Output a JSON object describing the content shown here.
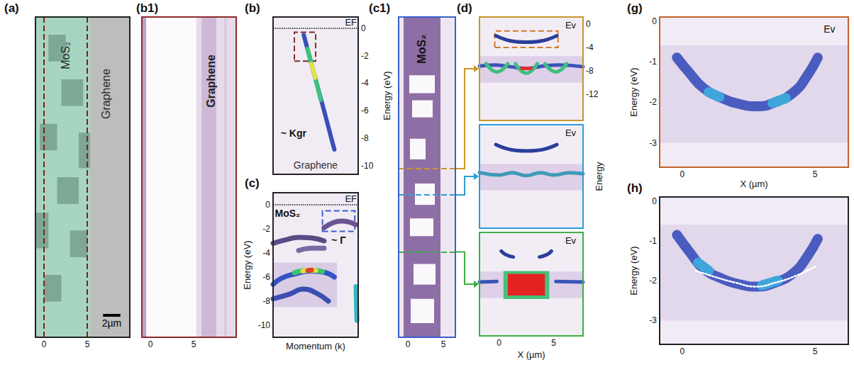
{
  "chart_data": [
    {
      "type": "image",
      "title": "(a)",
      "xlim": [
        -1,
        9.9
      ],
      "xticks": [
        0,
        5
      ],
      "ylim": [
        0,
        36
      ],
      "yticks": [],
      "tick_labels": "x",
      "areas": [
        {
          "x": [
            -1,
            9.9
          ],
          "y": [
            0,
            36
          ],
          "color": "#bdbdbd"
        },
        {
          "x": [
            -1,
            5.3
          ],
          "y": [
            0,
            36
          ],
          "color": "#a6d6c2"
        },
        {
          "x": [
            0.5,
            2.5
          ],
          "y": [
            31,
            34
          ],
          "color": "#7ea896"
        },
        {
          "x": [
            2.0,
            4.5
          ],
          "y": [
            26,
            29
          ],
          "color": "#7ea896"
        },
        {
          "x": [
            -0.5,
            1.5
          ],
          "y": [
            21,
            24
          ],
          "color": "#7ea896"
        },
        {
          "x": [
            1.5,
            4.0
          ],
          "y": [
            15,
            18
          ],
          "color": "#7ea896"
        },
        {
          "x": [
            3.0,
            5.0
          ],
          "y": [
            9,
            12
          ],
          "color": "#7ea896"
        },
        {
          "x": [
            0.0,
            2.0
          ],
          "y": [
            4,
            7
          ],
          "color": "#7ea896"
        },
        {
          "x": [
            4.0,
            5.3
          ],
          "y": [
            19,
            23
          ],
          "color": "#7ea896"
        },
        {
          "x": [
            -1,
            0.5
          ],
          "y": [
            10,
            14
          ],
          "color": "#7ea896"
        }
      ],
      "vlines": [
        0,
        5
      ],
      "annotations": [
        "MoS₂",
        "Graphene"
      ],
      "scale_bar": {
        "length": 2,
        "label": "2µm"
      }
    },
    {
      "type": "image",
      "title": "(b1)",
      "xlim": [
        -1,
        9.9
      ],
      "xticks": [
        0,
        5
      ],
      "ylim": [
        0,
        36
      ],
      "yticks": [],
      "tick_labels": "x",
      "areas": [
        {
          "x": [
            -1,
            9.9
          ],
          "y": [
            0,
            36
          ],
          "color": "#e6dbe9"
        },
        {
          "x": [
            -1,
            -0.5
          ],
          "y": [
            0,
            36
          ],
          "color": "#b9a3c9"
        },
        {
          "x": [
            -0.5,
            5.3
          ],
          "y": [
            0,
            36
          ],
          "color": "#fcfafc"
        },
        {
          "x": [
            5.9,
            7.6
          ],
          "y": [
            0,
            36
          ],
          "color": "#cdb9d7"
        },
        {
          "x": [
            8.5,
            8.8
          ],
          "y": [
            0,
            36
          ],
          "color": "#d9cadf"
        }
      ],
      "annotations": [
        "Graphene"
      ]
    },
    {
      "type": "spectrum",
      "title": "(b)",
      "xlim": [
        0,
        1
      ],
      "xticks": [],
      "ylim": [
        -10.6,
        0.8
      ],
      "yticks": [
        0,
        -2,
        -4,
        -6,
        -8,
        -10
      ],
      "ylabel": "Energy (eV)",
      "tick_labels": "y",
      "areas": [
        {
          "x": [
            0,
            1
          ],
          "y": [
            -10.6,
            0.8
          ],
          "color": "#f1ecf4"
        }
      ],
      "series": [
        {
          "color": "#3a4fb8",
          "x": [
            0.36,
            0.425,
            0.512,
            0.6,
            0.685,
            0.72
          ],
          "values": [
            -0.5,
            -2,
            -4,
            -6,
            -8,
            -8.8
          ]
        },
        {
          "color": "#3cc37a",
          "x": [
            0.405,
            0.447,
            0.5,
            0.56
          ],
          "values": [
            -1.5,
            -2.5,
            -3.7,
            -5.2
          ]
        },
        {
          "color": "#e8e04a",
          "x": [
            0.451,
            0.47,
            0.494
          ],
          "values": [
            -2.6,
            -3.0,
            -3.6
          ]
        }
      ],
      "hlines": [
        {
          "y": 0,
          "label": "EF"
        }
      ],
      "boxes": [
        {
          "x": [
            0.25,
            0.5
          ],
          "y": [
            -2.4,
            -0.3
          ],
          "color": "#8b2a2a"
        }
      ],
      "annotations": [
        "~ Kgr",
        "Graphene"
      ]
    },
    {
      "type": "spectrum",
      "title": "(c)",
      "xlim": [
        0,
        1
      ],
      "xticks": [],
      "ylim": [
        -11,
        1
      ],
      "yticks": [
        0,
        -2,
        -4,
        -6,
        -8,
        -10
      ],
      "xlabel": "Momentum (k)",
      "ylabel": "Energy (eV)",
      "tick_labels": "y",
      "areas": [
        {
          "x": [
            0,
            1
          ],
          "y": [
            -11,
            1
          ],
          "color": "#f1ecf4"
        },
        {
          "x": [
            0,
            0.75
          ],
          "y": [
            -8.5,
            -4.8
          ],
          "color": "#d9cde6"
        }
      ],
      "series": [
        {
          "color": "#6a5494",
          "x": [
            0.6,
            0.7,
            0.8,
            0.9,
            0.97
          ],
          "values": [
            -1.9,
            -1.5,
            -1.35,
            -1.45,
            -1.65
          ]
        },
        {
          "color": "#5a4a86",
          "x": [
            0,
            0.15,
            0.3,
            0.45,
            0.6
          ],
          "values": [
            -3.2,
            -2.9,
            -2.7,
            -2.75,
            -3.0
          ]
        },
        {
          "color": "#7a6aa4",
          "x": [
            0.3,
            0.45,
            0.6
          ],
          "values": [
            -3.8,
            -3.6,
            -3.6
          ]
        },
        {
          "color": "#3553c4",
          "x": [
            0,
            0.1,
            0.25,
            0.45,
            0.6,
            0.72
          ],
          "values": [
            -6.6,
            -6.1,
            -5.75,
            -5.5,
            -5.6,
            -6.0
          ]
        },
        {
          "color": "#3fc46e",
          "x": [
            0.25,
            0.38,
            0.5,
            0.58
          ],
          "values": [
            -5.65,
            -5.45,
            -5.45,
            -5.55
          ]
        },
        {
          "color": "#e4dc3c",
          "x": [
            0.35,
            0.43,
            0.5
          ],
          "values": [
            -5.5,
            -5.42,
            -5.45
          ]
        },
        {
          "color": "#e0402a",
          "x": [
            0.41,
            0.45
          ],
          "values": [
            -5.45,
            -5.42
          ]
        },
        {
          "color": "#3a4fb0",
          "x": [
            0,
            0.2,
            0.35,
            0.5,
            0.65
          ],
          "values": [
            -7.8,
            -7.4,
            -7.0,
            -7.3,
            -8.0
          ]
        },
        {
          "color": "#35b3c4",
          "x": [
            0.975,
            0.98,
            0.985
          ],
          "values": [
            -6.8,
            -8.2,
            -9.6
          ]
        }
      ],
      "hlines": [
        {
          "y": 0,
          "label": "EF"
        }
      ],
      "boxes": [
        {
          "x": [
            0.58,
            0.96
          ],
          "y": [
            -2.2,
            -0.5
          ],
          "color": "#3a5fcd"
        }
      ],
      "annotations": [
        "MoS₂",
        "~ Γ"
      ]
    },
    {
      "type": "image",
      "title": "(c1)",
      "xlim": [
        -1.3,
        6.7
      ],
      "xticks": [
        0,
        5
      ],
      "ylim": [
        0,
        45
      ],
      "yticks": [],
      "tick_labels": "x",
      "areas": [
        {
          "x": [
            -1.3,
            6.7
          ],
          "y": [
            0,
            45
          ],
          "color": "#eee6f0"
        },
        {
          "x": [
            -0.6,
            4.6
          ],
          "y": [
            0,
            45
          ],
          "color": "#8d6fa6"
        },
        {
          "x": [
            0.2,
            3.8
          ],
          "y": [
            34.3,
            36.8
          ],
          "color": "#fbf8fb"
        },
        {
          "x": [
            0.6,
            3.5
          ],
          "y": [
            30.9,
            33.3
          ],
          "color": "#fbf8fb"
        },
        {
          "x": [
            0.3,
            2.5
          ],
          "y": [
            25,
            27.9
          ],
          "color": "#fbf8fb"
        },
        {
          "x": [
            1,
            3.8
          ],
          "y": [
            18.6,
            21.6
          ],
          "color": "#fbf8fb"
        },
        {
          "x": [
            0.3,
            3.6
          ],
          "y": [
            14.2,
            16.7
          ],
          "color": "#fbf8fb"
        },
        {
          "x": [
            0.8,
            3.9
          ],
          "y": [
            7.4,
            10.3
          ],
          "color": "#fbf8fb"
        },
        {
          "x": [
            0.4,
            3.7
          ],
          "y": [
            2,
            5.4
          ],
          "color": "#fbf8fb"
        }
      ],
      "cuts": [
        23.7,
        20,
        12
      ],
      "annotations": [
        "MoS₂"
      ]
    },
    {
      "type": "spectrum",
      "title": "(d)",
      "xlim": [
        -1.8,
        7.7
      ],
      "xticks": [],
      "ylim": [
        -16.5,
        1.2
      ],
      "yticks": [
        0,
        -4,
        -8,
        -12
      ],
      "tick_labels": "y",
      "areas": [
        {
          "x": [
            -1.8,
            7.7
          ],
          "y": [
            -16.5,
            1.2
          ],
          "color": "#f2edf5"
        },
        {
          "x": [
            -1.8,
            7.7
          ],
          "y": [
            -10,
            -5.5
          ],
          "color": "#ddd0e8"
        }
      ],
      "series": [
        {
          "color": "#2a3f9a",
          "x": [
            -0.3,
            0.5,
            1.5,
            2.5,
            3.5,
            4.5,
            5.3
          ],
          "values": [
            -2.0,
            -2.6,
            -3.0,
            -3.1,
            -3.0,
            -2.6,
            -2.0
          ]
        },
        {
          "color": "#3a55b8",
          "x": [
            -1.8,
            -0.5,
            1,
            2.5,
            4,
            5.5,
            7.7
          ],
          "values": [
            -7.2,
            -7,
            -7.3,
            -7.6,
            -7.2,
            -7,
            -7.3
          ]
        },
        {
          "color": "#3fbf80",
          "x": [
            -1.2,
            -0.2,
            0.8,
            1.15,
            1.5,
            2.5,
            3.5,
            3.85,
            4.2,
            5.2,
            6.2
          ],
          "values": [
            -6.8,
            -8.2,
            -6.8,
            null,
            -6.8,
            -8.4,
            -6.8,
            null,
            -6.8,
            -8.2,
            -6.8
          ]
        },
        {
          "color": "#e03030",
          "x": [
            2.1,
            2.9
          ],
          "values": [
            -7.6,
            -7.6
          ]
        }
      ],
      "boxes": [
        {
          "x": [
            -0.4,
            5.4
          ],
          "y": [
            -4.0,
            -1.2
          ],
          "color": "#d4782a"
        }
      ],
      "annotations": [
        "Ev"
      ]
    },
    {
      "type": "spectrum",
      "xlim": [
        -1.8,
        7.7
      ],
      "xticks": [],
      "ylim": [
        -16.5,
        1.2
      ],
      "yticks": [],
      "ylabel": "Energy",
      "tick_labels": false,
      "areas": [
        {
          "x": [
            -1.8,
            7.7
          ],
          "y": [
            -16.5,
            1.2
          ],
          "color": "#f2edf5"
        },
        {
          "x": [
            -1.8,
            7.7
          ],
          "y": [
            -10,
            -5.5
          ],
          "color": "#ddd0e8"
        }
      ],
      "series": [
        {
          "color": "#2a3f9a",
          "x": [
            -0.3,
            0.5,
            1.5,
            2.5,
            3.5,
            4.5,
            5.3
          ],
          "values": [
            -2.2,
            -2.8,
            -3.2,
            -3.3,
            -3.2,
            -2.8,
            -2.2
          ]
        },
        {
          "color": "#3f9ab8",
          "x": [
            -1.8,
            0,
            1.2,
            2.5,
            3.8,
            5,
            6.5,
            7.7
          ],
          "values": [
            -7,
            -7.4,
            -7,
            -7.5,
            -7,
            -7.4,
            -7,
            -7.2
          ]
        }
      ],
      "annotations": [
        "Ev"
      ]
    },
    {
      "type": "spectrum",
      "xlim": [
        -1.8,
        7.7
      ],
      "xticks": [
        0,
        5
      ],
      "ylim": [
        -16.5,
        1.2
      ],
      "yticks": [],
      "xlabel": "X (µm)",
      "tick_labels": "x",
      "areas": [
        {
          "x": [
            -1.8,
            7.7
          ],
          "y": [
            -16.5,
            1.2
          ],
          "color": "#f2edf5"
        },
        {
          "x": [
            -1.8,
            7.7
          ],
          "y": [
            -10,
            -5.5
          ],
          "color": "#ddd0e8"
        },
        {
          "x": [
            0.4,
            4.6
          ],
          "y": [
            -10.2,
            -5.4
          ],
          "color": "#47c07a"
        },
        {
          "x": [
            0.8,
            4.2
          ],
          "y": [
            -9.6,
            -5.9
          ],
          "color": "#e32222"
        }
      ],
      "series": [
        {
          "color": "#2a3f9a",
          "x": [
            0.2,
            0.6,
            1.3,
            2.5,
            3.7,
            4.4,
            4.8
          ],
          "values": [
            -2,
            -2.6,
            -3,
            null,
            -3,
            -2.6,
            -2
          ]
        },
        {
          "color": "#3a55b8",
          "x": [
            -1.8,
            -0.2,
            2.5,
            5.2,
            7.7
          ],
          "values": [
            -7.3,
            -7.2,
            null,
            -7.2,
            -7.3
          ]
        }
      ],
      "annotations": [
        "Ev"
      ]
    },
    {
      "type": "spectrum",
      "title": "(g)",
      "xlim": [
        -0.85,
        6.25
      ],
      "xticks": [
        0,
        5
      ],
      "ylim": [
        -3.6,
        0.1
      ],
      "yticks": [
        0,
        -1,
        -2,
        -3
      ],
      "xlabel": "X (µm)",
      "ylabel": "Energy (eV)",
      "areas": [
        {
          "x": [
            -0.85,
            6.25
          ],
          "y": [
            -3.6,
            0.1
          ],
          "color": "#f0ebf4"
        },
        {
          "x": [
            -0.85,
            6.25
          ],
          "y": [
            -3.0,
            -0.6
          ],
          "color": "#e2d8ec"
        }
      ],
      "series": [
        {
          "color": "#4a5cc0",
          "x": [
            -0.2,
            0.3,
            0.8,
            1.5,
            2.2,
            2.8,
            3.5,
            4.2,
            4.7,
            5.1
          ],
          "values": [
            -0.9,
            -1.3,
            -1.65,
            -1.9,
            -2.05,
            -2.1,
            -2.0,
            -1.75,
            -1.35,
            -0.9
          ]
        },
        {
          "color": "#3fa6dc",
          "x": [
            1.0,
            1.4,
            2.4,
            3.4,
            3.9
          ],
          "values": [
            -1.75,
            -1.87,
            null,
            -2.02,
            -1.9
          ]
        }
      ],
      "annotations": [
        "Ev"
      ]
    },
    {
      "type": "spectrum",
      "title": "(h)",
      "xlim": [
        -0.85,
        6.25
      ],
      "xticks": [
        0,
        5
      ],
      "ylim": [
        -3.6,
        0.1
      ],
      "yticks": [
        0,
        -1,
        -2,
        -3
      ],
      "ylabel": "Energy (eV)",
      "areas": [
        {
          "x": [
            -0.85,
            6.25
          ],
          "y": [
            -3.6,
            0.1
          ],
          "color": "#f0ebf4"
        },
        {
          "x": [
            -0.85,
            6.25
          ],
          "y": [
            -3.0,
            -0.6
          ],
          "color": "#e2d8ec"
        }
      ],
      "series": [
        {
          "color": "#4a5cc0",
          "x": [
            -0.2,
            0.3,
            0.8,
            1.5,
            2.2,
            2.8,
            3.5,
            4.2,
            4.7,
            5.1
          ],
          "values": [
            -0.85,
            -1.3,
            -1.7,
            -1.95,
            -2.1,
            -2.15,
            -2.05,
            -1.8,
            -1.4,
            -0.95
          ]
        },
        {
          "color": "#3fa6dc",
          "x": [
            0.6,
            1.0,
            2.0,
            3.0,
            3.6
          ],
          "values": [
            -1.55,
            -1.75,
            null,
            -2.12,
            -2.0
          ]
        },
        {
          "color": "#ffffff",
          "line_style": "dotted",
          "x": [
            0.5,
            1.2,
            2,
            2.8,
            3.5,
            4.2,
            5
          ],
          "values": [
            -1.75,
            -1.9,
            -2.05,
            -2.15,
            -2.05,
            -1.9,
            -1.65
          ]
        }
      ]
    }
  ]
}
